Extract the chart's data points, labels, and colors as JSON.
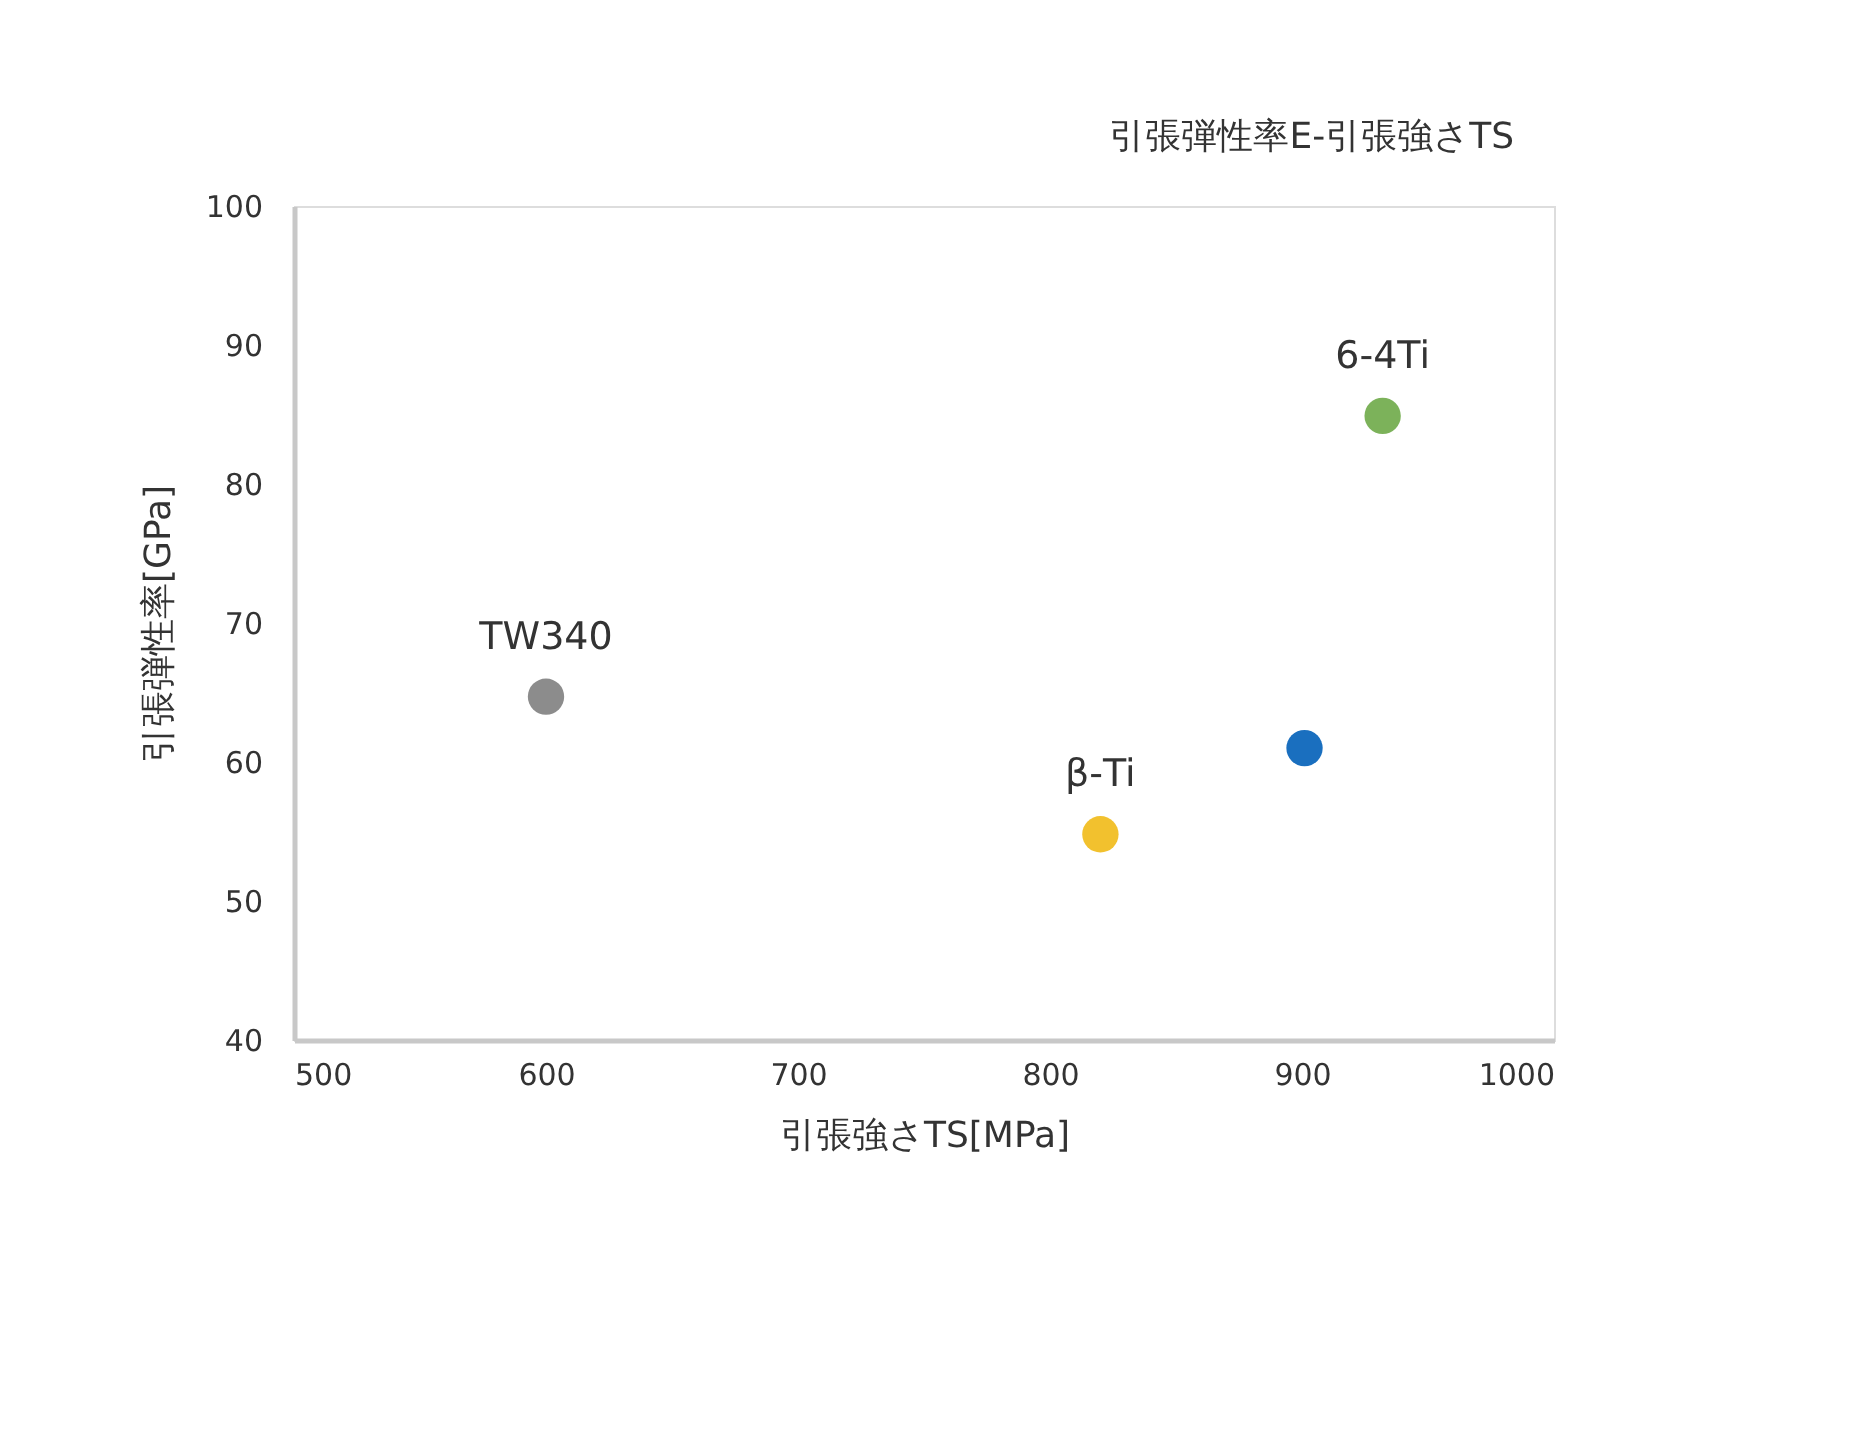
{
  "chart_data": {
    "type": "scatter",
    "title": "引張弾性率E-引張強さTS",
    "xlabel": "引張強さTS[MPa]",
    "ylabel": "引張弾性率[GPa]",
    "xlim": [
      500,
      1000
    ],
    "xticks": [
      500,
      600,
      700,
      800,
      900,
      1000
    ],
    "ylim": [
      40,
      100
    ],
    "yticks": [
      40,
      50,
      60,
      70,
      80,
      90,
      100
    ],
    "grid": false,
    "legend": false,
    "marker": "circle",
    "series": [
      {
        "name": "TW340",
        "color": "#8c8c8c",
        "x": [
          600
        ],
        "values": [
          64.7
        ]
      },
      {
        "name": "β-Ti",
        "color": "#f2c12e",
        "x": [
          820
        ],
        "values": [
          54.8
        ]
      },
      {
        "color": "#1a6fbf",
        "x": [
          901
        ],
        "values": [
          61
        ]
      },
      {
        "name": "6-4Ti",
        "color": "#7cb25a",
        "x": [
          932
        ],
        "values": [
          84.9
        ]
      }
    ]
  }
}
